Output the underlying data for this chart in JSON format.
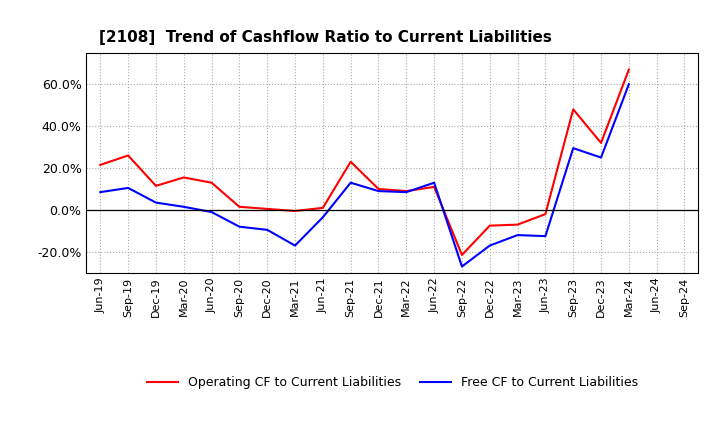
{
  "title": "[2108]  Trend of Cashflow Ratio to Current Liabilities",
  "x_labels": [
    "Jun-19",
    "Sep-19",
    "Dec-19",
    "Mar-20",
    "Jun-20",
    "Sep-20",
    "Dec-20",
    "Mar-21",
    "Jun-21",
    "Sep-21",
    "Dec-21",
    "Mar-22",
    "Jun-22",
    "Sep-22",
    "Dec-22",
    "Mar-23",
    "Jun-23",
    "Sep-23",
    "Dec-23",
    "Mar-24",
    "Jun-24",
    "Sep-24"
  ],
  "operating_cf": [
    21.5,
    26.0,
    11.5,
    15.5,
    13.0,
    1.5,
    0.5,
    -0.5,
    1.0,
    23.0,
    10.0,
    9.0,
    11.0,
    -21.5,
    -7.5,
    -7.0,
    -2.0,
    48.0,
    32.0,
    67.0,
    null,
    null
  ],
  "free_cf": [
    8.5,
    10.5,
    3.5,
    1.5,
    -1.0,
    -8.0,
    -9.5,
    -17.0,
    -3.5,
    13.0,
    9.0,
    8.5,
    13.0,
    -27.0,
    -17.0,
    -12.0,
    -12.5,
    29.5,
    25.0,
    60.0,
    null,
    null
  ],
  "operating_color": "#FF0000",
  "free_color": "#0000FF",
  "ylim": [
    -30,
    75
  ],
  "yticks": [
    -20.0,
    0.0,
    20.0,
    40.0,
    60.0
  ],
  "background_color": "#FFFFFF",
  "plot_bg_color": "#FFFFFF",
  "grid_color": "#AAAAAA",
  "legend_labels": [
    "Operating CF to Current Liabilities",
    "Free CF to Current Liabilities"
  ]
}
